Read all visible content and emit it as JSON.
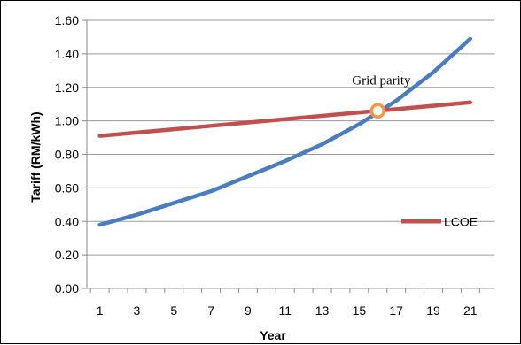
{
  "chart_data": {
    "type": "line",
    "x": [
      1,
      3,
      5,
      7,
      9,
      11,
      13,
      15,
      17,
      19,
      21
    ],
    "xlabel": "Year",
    "ylabel": "Tariff (RM/kWh)",
    "xlim": [
      0.3,
      22.3
    ],
    "ylim": [
      0,
      1.6
    ],
    "y_ticks": [
      0,
      0.2,
      0.4,
      0.6,
      0.8,
      1.0,
      1.2,
      1.4,
      1.6
    ],
    "y_tick_labels": [
      "0.00",
      "0.20",
      "0.40",
      "0.60",
      "0.80",
      "1.00",
      "1.20",
      "1.40",
      "1.60"
    ],
    "x_tick_labels": [
      "1",
      "3",
      "5",
      "7",
      "9",
      "11",
      "13",
      "15",
      "17",
      "19",
      "21"
    ],
    "grid": true,
    "legend_position": "right",
    "series": [
      {
        "name": "",
        "color": "#4a7cc0",
        "values": [
          0.38,
          0.44,
          0.51,
          0.58,
          0.67,
          0.76,
          0.86,
          0.98,
          1.12,
          1.29,
          1.49
        ]
      },
      {
        "name": "LCOE",
        "color": "#c0504d",
        "values": [
          0.91,
          0.93,
          0.95,
          0.97,
          0.99,
          1.01,
          1.03,
          1.05,
          1.07,
          1.09,
          1.11
        ]
      }
    ],
    "annotations": [
      {
        "text": "Grid parity",
        "x": 16,
        "y": 1.06,
        "marker_color": "#f79646"
      }
    ]
  }
}
